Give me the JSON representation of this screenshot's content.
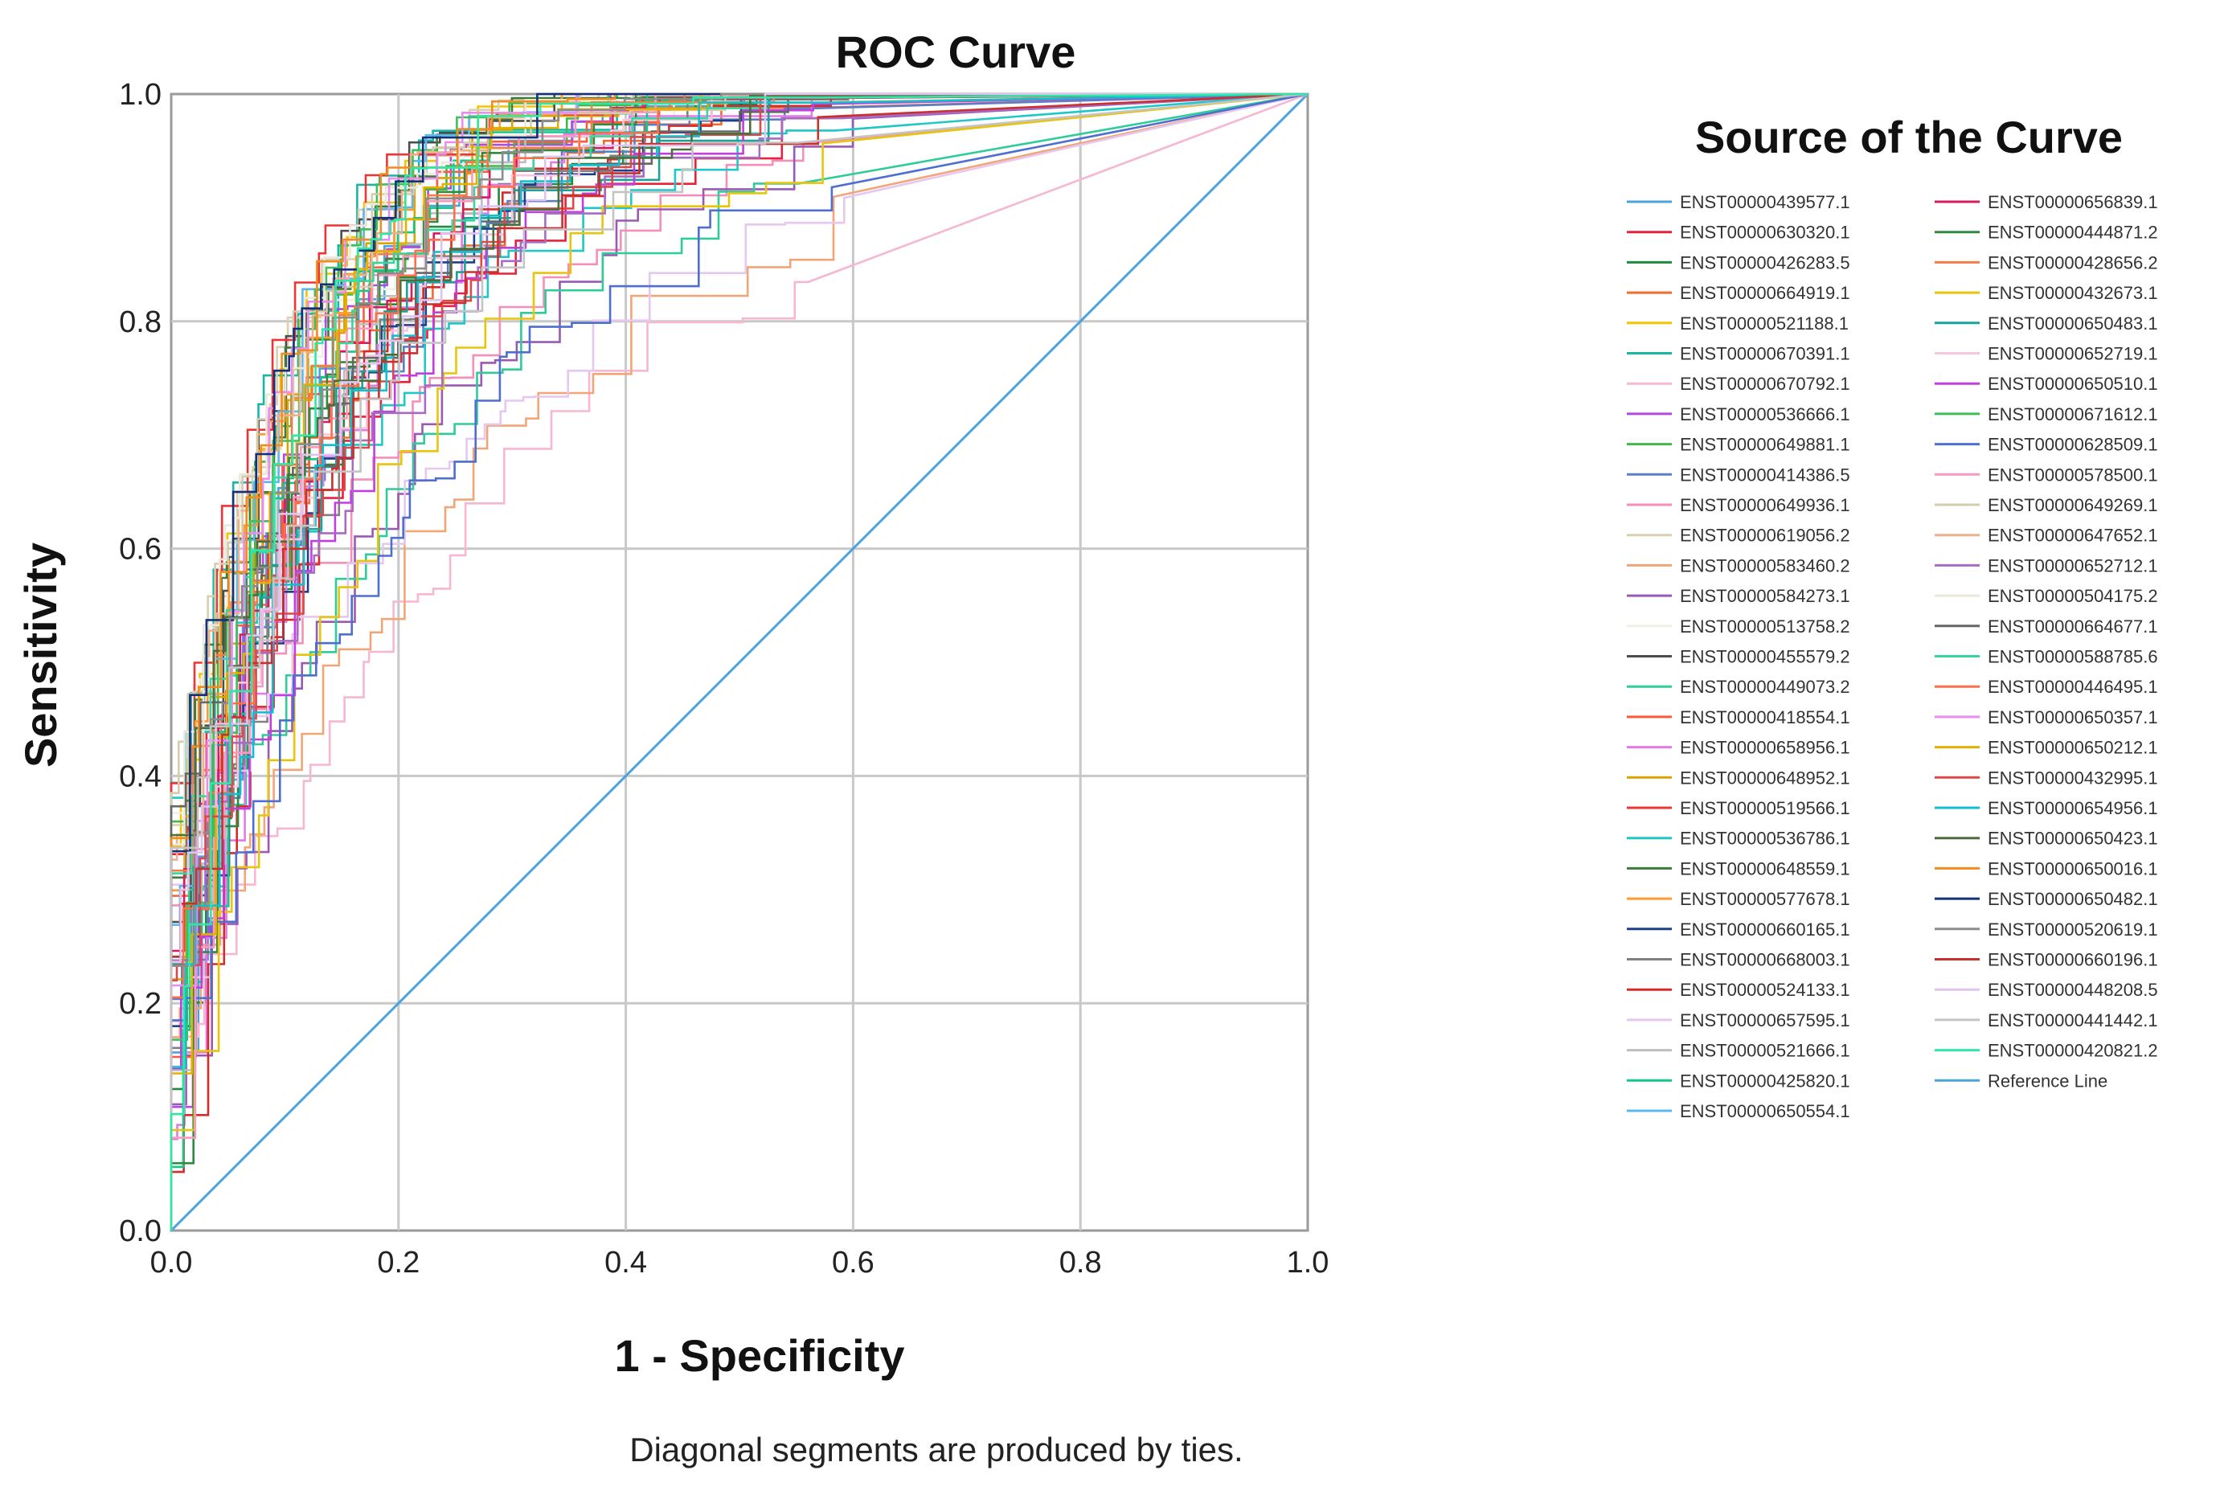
{
  "chart_data": {
    "type": "line",
    "title": "ROC Curve",
    "xlabel": "1 - Specificity",
    "ylabel": "Sensitivity",
    "xlim": [
      0,
      1
    ],
    "ylim": [
      0,
      1
    ],
    "grid": true,
    "x_ticks": [
      "0.0",
      "0.2",
      "0.4",
      "0.6",
      "0.8",
      "1.0"
    ],
    "y_ticks": [
      "0.0",
      "0.2",
      "0.4",
      "0.6",
      "0.8",
      "1.0"
    ],
    "legend_title": "Source of the Curve",
    "legend_position": "right",
    "footnote": "Diagonal segments are produced by ties.",
    "series": [
      {
        "name": "ENST00000439577.1",
        "color": "#4aa3df"
      },
      {
        "name": "ENST00000630320.1",
        "color": "#e8223a"
      },
      {
        "name": "ENST00000426283.5",
        "color": "#1f8a3c"
      },
      {
        "name": "ENST00000664919.1",
        "color": "#f26b2a"
      },
      {
        "name": "ENST00000521188.1",
        "color": "#f2c500"
      },
      {
        "name": "ENST00000670391.1",
        "color": "#19b5a5"
      },
      {
        "name": "ENST00000670792.1",
        "color": "#f7b6d2"
      },
      {
        "name": "ENST00000536666.1",
        "color": "#b548e0"
      },
      {
        "name": "ENST00000649881.1",
        "color": "#43b649"
      },
      {
        "name": "ENST00000414386.5",
        "color": "#5b7fc7"
      },
      {
        "name": "ENST00000649936.1",
        "color": "#f58fb9"
      },
      {
        "name": "ENST00000619056.2",
        "color": "#d8d0b0"
      },
      {
        "name": "ENST00000583460.2",
        "color": "#f2a678"
      },
      {
        "name": "ENST00000584273.1",
        "color": "#9b59b6"
      },
      {
        "name": "ENST00000513758.2",
        "color": "#f1eee4"
      },
      {
        "name": "ENST00000455579.2",
        "color": "#4d4d4d"
      },
      {
        "name": "ENST00000449073.2",
        "color": "#2ecc9a"
      },
      {
        "name": "ENST00000418554.1",
        "color": "#ff5a3c"
      },
      {
        "name": "ENST00000658956.1",
        "color": "#e27ae8"
      },
      {
        "name": "ENST00000648952.1",
        "color": "#d9a400"
      },
      {
        "name": "ENST00000519566.1",
        "color": "#ee3535"
      },
      {
        "name": "ENST00000536786.1",
        "color": "#1fc7c7"
      },
      {
        "name": "ENST00000648559.1",
        "color": "#3a7d3a"
      },
      {
        "name": "ENST00000577678.1",
        "color": "#ff9a2e"
      },
      {
        "name": "ENST00000660165.1",
        "color": "#1f3f8c"
      },
      {
        "name": "ENST00000668003.1",
        "color": "#808080"
      },
      {
        "name": "ENST00000524133.1",
        "color": "#d62b2b"
      },
      {
        "name": "ENST00000657595.1",
        "color": "#e6c7f0"
      },
      {
        "name": "ENST00000521666.1",
        "color": "#bdbdbd"
      },
      {
        "name": "ENST00000425820.1",
        "color": "#16c78a"
      },
      {
        "name": "ENST00000650554.1",
        "color": "#5cb8f0"
      },
      {
        "name": "ENST00000656839.1",
        "color": "#d81b60"
      },
      {
        "name": "ENST00000444871.2",
        "color": "#2e8b3e"
      },
      {
        "name": "ENST00000428656.2",
        "color": "#f57c45"
      },
      {
        "name": "ENST00000432673.1",
        "color": "#e8c40b"
      },
      {
        "name": "ENST00000650483.1",
        "color": "#19a39a"
      },
      {
        "name": "ENST00000652719.1",
        "color": "#f9c6dd"
      },
      {
        "name": "ENST00000650510.1",
        "color": "#c23ee0"
      },
      {
        "name": "ENST00000671612.1",
        "color": "#3fbf5a"
      },
      {
        "name": "ENST00000628509.1",
        "color": "#4f6fd0"
      },
      {
        "name": "ENST00000578500.1",
        "color": "#f79ac0"
      },
      {
        "name": "ENST00000649269.1",
        "color": "#d4ccae"
      },
      {
        "name": "ENST00000647652.1",
        "color": "#eeb08a"
      },
      {
        "name": "ENST00000652712.1",
        "color": "#a76bc4"
      },
      {
        "name": "ENST00000504175.2",
        "color": "#ece8dc"
      },
      {
        "name": "ENST00000664677.1",
        "color": "#666666"
      },
      {
        "name": "ENST00000588785.6",
        "color": "#36d6a0"
      },
      {
        "name": "ENST00000446495.1",
        "color": "#ff6e4a"
      },
      {
        "name": "ENST00000650357.1",
        "color": "#ea8cf0"
      },
      {
        "name": "ENST00000650212.1",
        "color": "#e6b000"
      },
      {
        "name": "ENST00000432995.1",
        "color": "#e04848"
      },
      {
        "name": "ENST00000654956.1",
        "color": "#10c0d0"
      },
      {
        "name": "ENST00000650423.1",
        "color": "#4b6e3a"
      },
      {
        "name": "ENST00000650016.1",
        "color": "#f28c1e"
      },
      {
        "name": "ENST00000650482.1",
        "color": "#13307a"
      },
      {
        "name": "ENST00000520619.1",
        "color": "#8c8c8c"
      },
      {
        "name": "ENST00000660196.1",
        "color": "#c93030"
      },
      {
        "name": "ENST00000448208.5",
        "color": "#dfc4ee"
      },
      {
        "name": "ENST00000441442.1",
        "color": "#c4c4c4"
      },
      {
        "name": "ENST00000420821.2",
        "color": "#2ee8a6"
      },
      {
        "name": "Reference Line",
        "color": "#4aa3df"
      }
    ]
  }
}
